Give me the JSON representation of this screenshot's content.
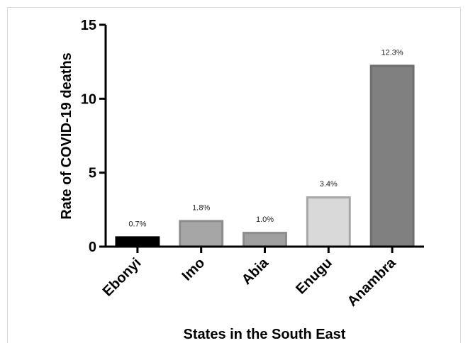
{
  "chart_data": {
    "type": "bar",
    "title": "",
    "xlabel": "States in the South East",
    "ylabel": "Rate of COVID-19 deaths",
    "categories": [
      "Ebonyi",
      "Imo",
      "Abia",
      "Enugu",
      "Anambra"
    ],
    "values": [
      0.7,
      1.8,
      1.0,
      3.4,
      12.3
    ],
    "data_labels": [
      "0.7%",
      "1.8%",
      "1.0%",
      "3.4%",
      "12.3%"
    ],
    "yticks": [
      0,
      5,
      10,
      15
    ],
    "ylim": [
      0,
      15
    ],
    "grid": false,
    "colors": {
      "fills": [
        "#000000",
        "#a6a6a6",
        "#a0a0a0",
        "#d9d9d9",
        "#808080"
      ],
      "strokes": [
        "#000000",
        "#8c8c8c",
        "#8c8c8c",
        "#a6a6a6",
        "#6e6e6e"
      ]
    }
  }
}
